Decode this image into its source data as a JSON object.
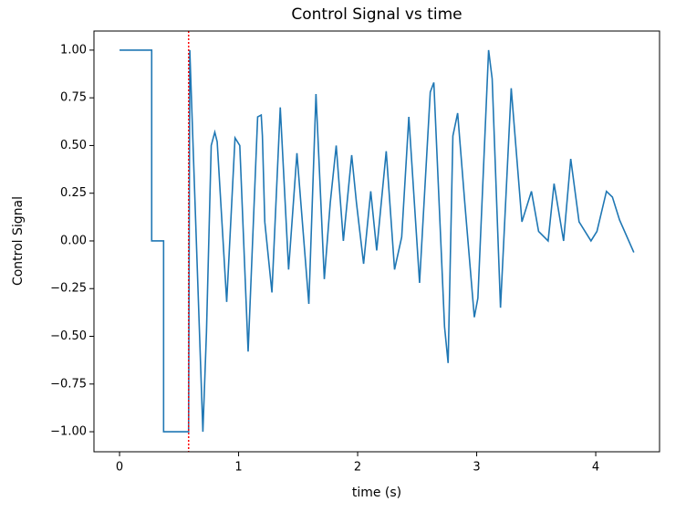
{
  "chart_data": {
    "type": "line",
    "title": "Control Signal vs time",
    "x_label": "time (s)",
    "y_label": "Control Signal",
    "x": [
      0,
      0.27,
      0.27,
      0.37,
      0.37,
      0.58,
      0.59,
      0.7,
      0.73,
      0.77,
      0.8,
      0.82,
      0.9,
      0.97,
      1.01,
      1.08,
      1.16,
      1.19,
      1.2,
      1.22,
      1.28,
      1.35,
      1.42,
      1.49,
      1.59,
      1.65,
      1.72,
      1.77,
      1.82,
      1.88,
      1.95,
      1.99,
      2.05,
      2.11,
      2.16,
      2.24,
      2.31,
      2.37,
      2.43,
      2.52,
      2.61,
      2.64,
      2.73,
      2.76,
      2.8,
      2.84,
      2.9,
      2.98,
      3.01,
      3.1,
      3.13,
      3.2,
      3.29,
      3.38,
      3.46,
      3.52,
      3.6,
      3.65,
      3.73,
      3.79,
      3.86,
      3.96,
      4.01,
      4.09,
      4.14,
      4.2,
      4.32
    ],
    "series": [
      {
        "color": "#1f77b4",
        "values": [
          1,
          1,
          0,
          0,
          -1,
          -1,
          1,
          -1,
          -0.48,
          0.5,
          0.57,
          0.52,
          -0.32,
          0.54,
          0.5,
          -0.58,
          0.65,
          0.66,
          0.55,
          0.1,
          -0.27,
          0.7,
          -0.15,
          0.46,
          -0.33,
          0.77,
          -0.2,
          0.2,
          0.5,
          0.0,
          0.45,
          0.2,
          -0.12,
          0.26,
          -0.05,
          0.47,
          -0.15,
          0.02,
          0.65,
          -0.22,
          0.78,
          0.83,
          -0.45,
          -0.64,
          0.55,
          0.67,
          0.2,
          -0.4,
          -0.3,
          1.0,
          0.85,
          -0.35,
          0.8,
          0.1,
          0.26,
          0.05,
          0.0,
          0.3,
          0.0,
          0.43,
          0.1,
          0.0,
          0.05,
          0.26,
          0.23,
          0.11,
          -0.06
        ]
      }
    ],
    "vline": {
      "x": 0.58,
      "color": "red"
    },
    "xlim": [
      -0.215,
      4.536
    ],
    "ylim": [
      -1.105,
      1.1
    ],
    "xticks": [
      0,
      1,
      2,
      3,
      4
    ],
    "yticks": [
      {
        "value": -1,
        "label": "−1.00"
      },
      {
        "value": -0.75,
        "label": "−0.75"
      },
      {
        "value": -0.5,
        "label": "−0.50"
      },
      {
        "value": -0.25,
        "label": "−0.25"
      },
      {
        "value": 0,
        "label": "0.00"
      },
      {
        "value": 0.25,
        "label": "0.25"
      },
      {
        "value": 0.5,
        "label": "0.50"
      },
      {
        "value": 0.75,
        "label": "0.75"
      },
      {
        "value": 1,
        "label": "1.00"
      }
    ]
  }
}
